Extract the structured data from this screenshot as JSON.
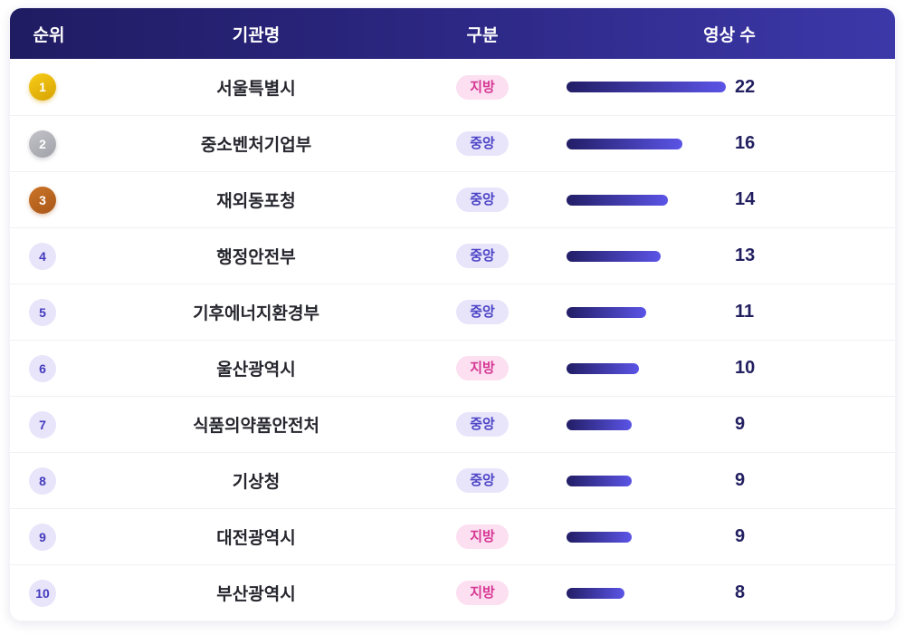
{
  "table": {
    "columns": [
      {
        "key": "rank",
        "label": "순위"
      },
      {
        "key": "name",
        "label": "기관명"
      },
      {
        "key": "category",
        "label": "구분"
      },
      {
        "key": "count",
        "label": "영상 수"
      }
    ],
    "max_count": 22,
    "rows": [
      {
        "rank": 1,
        "name": "서울특별시",
        "category": "지방",
        "category_type": "local",
        "count": 22
      },
      {
        "rank": 2,
        "name": "중소벤처기업부",
        "category": "중앙",
        "category_type": "central",
        "count": 16
      },
      {
        "rank": 3,
        "name": "재외동포청",
        "category": "중앙",
        "category_type": "central",
        "count": 14
      },
      {
        "rank": 4,
        "name": "행정안전부",
        "category": "중앙",
        "category_type": "central",
        "count": 13
      },
      {
        "rank": 5,
        "name": "기후에너지환경부",
        "category": "중앙",
        "category_type": "central",
        "count": 11
      },
      {
        "rank": 6,
        "name": "울산광역시",
        "category": "지방",
        "category_type": "local",
        "count": 10
      },
      {
        "rank": 7,
        "name": "식품의약품안전처",
        "category": "중앙",
        "category_type": "central",
        "count": 9
      },
      {
        "rank": 8,
        "name": "기상청",
        "category": "중앙",
        "category_type": "central",
        "count": 9
      },
      {
        "rank": 9,
        "name": "대전광역시",
        "category": "지방",
        "category_type": "local",
        "count": 9
      },
      {
        "rank": 10,
        "name": "부산광역시",
        "category": "지방",
        "category_type": "local",
        "count": 8
      }
    ]
  },
  "colors": {
    "header_gradient_start": "#201c62",
    "header_gradient_end": "#3c38a9",
    "bar_gradient_start": "#221e66",
    "bar_gradient_end": "#5b54e6",
    "count_text": "#221f60",
    "badge_local_bg": "#fcdff0",
    "badge_local_text": "#d63794",
    "badge_central_bg": "#e8e5fb",
    "badge_central_text": "#4c43c6",
    "rank_gold": "#e3b40c",
    "rank_silver": "#b2b2b9",
    "rank_bronze": "#ba6520",
    "rank_default_bg": "#e8e4fa",
    "rank_default_text": "#433bbd"
  },
  "chart_data": {
    "type": "bar",
    "orientation": "horizontal",
    "title": "",
    "xlabel": "영상 수",
    "ylabel": "기관명",
    "categories": [
      "서울특별시",
      "중소벤처기업부",
      "재외동포청",
      "행정안전부",
      "기후에너지환경부",
      "울산광역시",
      "식품의약품안전처",
      "기상청",
      "대전광역시",
      "부산광역시"
    ],
    "values": [
      22,
      16,
      14,
      13,
      11,
      10,
      9,
      9,
      9,
      8
    ],
    "category_groups": [
      "지방",
      "중앙",
      "중앙",
      "중앙",
      "중앙",
      "지방",
      "중앙",
      "중앙",
      "지방",
      "지방"
    ],
    "xlim": [
      0,
      22
    ],
    "grid": false,
    "legend": false
  }
}
